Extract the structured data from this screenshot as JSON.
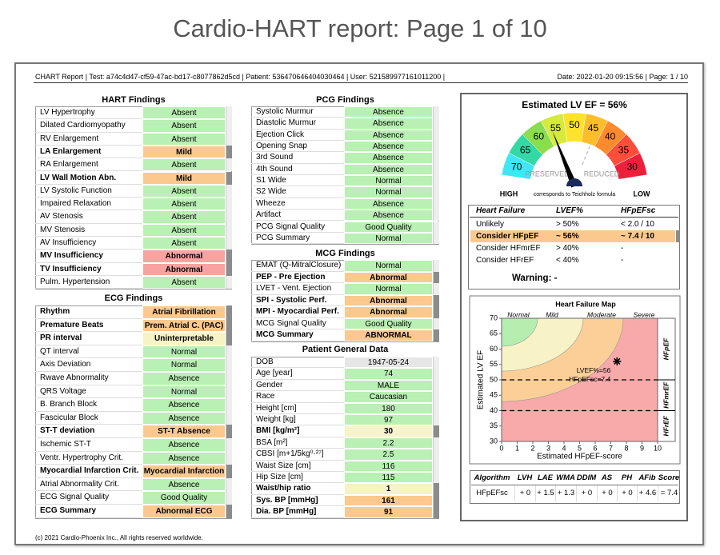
{
  "title": "Cardio-HART report: Page 1 of 10",
  "header": {
    "left": "CHART Report  |  Test: a74c4d47-cf59-47ac-bd17-c8077862d5cd  |  Patient: 536470646404030464  |  User: 521589977161011200  |",
    "right": "Date: 2022-01-20 09:15:56  |  Page: 1 / 10"
  },
  "hart": {
    "title": "HART Findings",
    "rows": [
      {
        "label": "LV Hypertrophy",
        "value": "Absent",
        "color": "#b9f0b3"
      },
      {
        "label": "Dilated Cardiomyopathy",
        "value": "Absent",
        "color": "#b9f0b3"
      },
      {
        "label": "RV Enlargement",
        "value": "Absent",
        "color": "#b9f0b3"
      },
      {
        "label": "LA Enlargement",
        "value": "Mild",
        "color": "#fbc98e",
        "bold": true
      },
      {
        "label": "RA Enlargement",
        "value": "Absent",
        "color": "#b9f0b3"
      },
      {
        "label": "LV Wall Motion Abn.",
        "value": "Mild",
        "color": "#fbc98e",
        "bold": true
      },
      {
        "label": "LV Systolic Function",
        "value": "Absent",
        "color": "#b9f0b3"
      },
      {
        "label": "Impaired Relaxation",
        "value": "Absent",
        "color": "#b9f0b3"
      },
      {
        "label": "AV Stenosis",
        "value": "Absent",
        "color": "#b9f0b3"
      },
      {
        "label": "MV Stenosis",
        "value": "Absent",
        "color": "#b9f0b3"
      },
      {
        "label": "AV Insufficiency",
        "value": "Absent",
        "color": "#b9f0b3"
      },
      {
        "label": "MV Insufficiency",
        "value": "Abnormal",
        "color": "#f8a3a1",
        "bold": true
      },
      {
        "label": "TV Insufficiency",
        "value": "Abnormal",
        "color": "#f8a3a1",
        "bold": true
      },
      {
        "label": "Pulm. Hypertension",
        "value": "Absent",
        "color": "#b9f0b3"
      }
    ]
  },
  "ecg": {
    "title": "ECG Findings",
    "rows": [
      {
        "label": "Rhythm",
        "value": "Atrial Fibrillation",
        "color": "#fbc98e",
        "bold": true
      },
      {
        "label": "Premature Beats",
        "value": "Prem. Atrial C. (PAC)",
        "color": "#fbc98e",
        "bold": true
      },
      {
        "label": "PR interval",
        "value": "Uninterpretable",
        "color": "#f6f3c5",
        "bold": true
      },
      {
        "label": "QT interval",
        "value": "Normal",
        "color": "#b9f0b3"
      },
      {
        "label": "Axis Deviation",
        "value": "Normal",
        "color": "#b9f0b3"
      },
      {
        "label": "Rwave Abnormality",
        "value": "Absence",
        "color": "#b9f0b3"
      },
      {
        "label": "QRS Voltage",
        "value": "Normal",
        "color": "#b9f0b3"
      },
      {
        "label": "B. Branch Block",
        "value": "Absence",
        "color": "#b9f0b3"
      },
      {
        "label": "Fascicular Block",
        "value": "Absence",
        "color": "#b9f0b3"
      },
      {
        "label": "ST-T deviation",
        "value": "ST-T Absence",
        "color": "#fbc98e",
        "bold": true
      },
      {
        "label": "Ischemic ST-T",
        "value": "Absence",
        "color": "#b9f0b3"
      },
      {
        "label": "Ventr. Hypertrophy Crit.",
        "value": "Absence",
        "color": "#b9f0b3"
      },
      {
        "label": "Myocardial Infarction Crit.",
        "value": "Myocardial Infarction",
        "color": "#fbc98e",
        "bold": true
      },
      {
        "label": "Atrial Abnormality Crit.",
        "value": "Absence",
        "color": "#b9f0b3"
      },
      {
        "label": "ECG Signal Quality",
        "value": "Good Quality",
        "color": "#b9f0b3"
      },
      {
        "label": "ECG Summary",
        "value": "Abnormal ECG",
        "color": "#fbc98e",
        "bold": true
      }
    ]
  },
  "pcg": {
    "title": "PCG Findings",
    "rows": [
      {
        "label": "Systolic Murmur",
        "value": "Absence",
        "color": "#b9f0b3"
      },
      {
        "label": "Diastolic Murmur",
        "value": "Absence",
        "color": "#b9f0b3"
      },
      {
        "label": "Ejection Click",
        "value": "Absence",
        "color": "#b9f0b3"
      },
      {
        "label": "Opening Snap",
        "value": "Absence",
        "color": "#b9f0b3"
      },
      {
        "label": "3rd Sound",
        "value": "Absence",
        "color": "#b9f0b3"
      },
      {
        "label": "4th Sound",
        "value": "Absence",
        "color": "#b9f0b3"
      },
      {
        "label": "S1 Wide",
        "value": "Normal",
        "color": "#b9f0b3"
      },
      {
        "label": "S2 Wide",
        "value": "Normal",
        "color": "#b9f0b3"
      },
      {
        "label": "Wheeze",
        "value": "Absence",
        "color": "#b9f0b3"
      },
      {
        "label": "Artifact",
        "value": "Absence",
        "color": "#b9f0b3"
      },
      {
        "label": "PCG Signal Quality",
        "value": "Good Quality",
        "color": "#b9f0b3"
      },
      {
        "label": "PCG Summary",
        "value": "Normal",
        "color": "#b9f0b3"
      }
    ]
  },
  "mcg": {
    "title": "MCG Findings",
    "rows": [
      {
        "label": "EMAT (Q-MitralClosure)",
        "value": "Normal",
        "color": "#b9f0b3"
      },
      {
        "label": "PEP - Pre Ejection",
        "value": "Abnormal",
        "color": "#fbc98e",
        "bold": true
      },
      {
        "label": "LVET - Vent. Ejection",
        "value": "Normal",
        "color": "#b9f0b3"
      },
      {
        "label": "SPI - Systolic Perf.",
        "value": "Abnormal",
        "color": "#fbc98e",
        "bold": true
      },
      {
        "label": "MPI - Myocardial Perf.",
        "value": "Abnormal",
        "color": "#fbc98e",
        "bold": true
      },
      {
        "label": "MCG Signal Quality",
        "value": "Good Quality",
        "color": "#b9f0b3"
      },
      {
        "label": "MCG Summary",
        "value": "ABNORMAL",
        "color": "#fbc98e",
        "bold": true
      }
    ]
  },
  "patient": {
    "title": "Patient General Data",
    "rows": [
      {
        "label": "DOB",
        "value": "1947-05-24",
        "color": "#e6e6e6"
      },
      {
        "label": "Age [year]",
        "value": "74",
        "color": "#b9f0b3"
      },
      {
        "label": "Gender",
        "value": "MALE",
        "color": "#b9f0b3"
      },
      {
        "label": "Race",
        "value": "Caucasian",
        "color": "#b9f0b3"
      },
      {
        "label": "Height [cm]",
        "value": "180",
        "color": "#b9f0b3"
      },
      {
        "label": "Weight [kg]",
        "value": "97",
        "color": "#b9f0b3"
      },
      {
        "label": "BMI [kg/m²]",
        "value": "30",
        "color": "#f6f3c5",
        "bold": true
      },
      {
        "label": "BSA [m²]",
        "value": "2.2",
        "color": "#b9f0b3"
      },
      {
        "label": "CBSI [m+1/5kg⁰·²⁷]",
        "value": "2.5",
        "color": "#b9f0b3"
      },
      {
        "label": "Waist Size [cm]",
        "value": "116",
        "color": "#b9f0b3"
      },
      {
        "label": "Hip Size [cm]",
        "value": "115",
        "color": "#b9f0b3"
      },
      {
        "label": "Waist/hip ratio",
        "value": "1",
        "color": "#f6f3c5",
        "bold": true
      },
      {
        "label": "Sys. BP [mmHg]",
        "value": "161",
        "color": "#fbc98e",
        "bold": true
      },
      {
        "label": "Dia. BP [mmHg]",
        "value": "91",
        "color": "#fbc98e",
        "bold": true
      }
    ]
  },
  "heart_failure": {
    "header": [
      "Heart Failure",
      "LVEF%",
      "HFpEFsc"
    ],
    "rows": [
      {
        "cells": [
          "Unlikely",
          "> 50%",
          "< 2.0 / 10"
        ]
      },
      {
        "cells": [
          "Consider HFpEF",
          "~ 56%",
          "~ 7.4 / 10"
        ],
        "color": "#fbc98e",
        "bold": true
      },
      {
        "cells": [
          "Consider HFmrEF",
          "> 40%",
          "-"
        ]
      },
      {
        "cells": [
          "Consider HFrEF",
          "< 40%",
          "-"
        ]
      }
    ],
    "warning": "Warning: -"
  },
  "algorithm": {
    "header": [
      "Algorithm",
      "LVH",
      "LAE",
      "WMA",
      "DDIM",
      "AS",
      "PH",
      "AFib",
      "Score"
    ],
    "row": [
      "HFpEFsc",
      "+ 0",
      "+ 1.5",
      "+ 1.3",
      "+ 0",
      "+ 0",
      "+ 0",
      "+ 4.6",
      "= 7.4"
    ]
  },
  "footer": "(c) 2021 Cardio-Phoenix Inc., All rights reserved worldwide.",
  "chart_data": [
    {
      "type": "gauge",
      "title": "Estimated LV EF = 56%",
      "value": 56,
      "lim": [
        75,
        25
      ],
      "ticks": [
        70,
        65,
        60,
        55,
        50,
        45,
        40,
        35,
        30
      ],
      "colors": [
        "#3ee6f6",
        "#33d9a5",
        "#8ade4c",
        "#d5ea3c",
        "#ffe22c",
        "#ffbd2c",
        "#ff8a2d",
        "#ff4d3b",
        "#ee1f3b"
      ],
      "left_label": "PRESERVED",
      "right_label": "REDUCED",
      "high_label": "HIGH",
      "low_label": "LOW",
      "note": "corresponds to Teichholz formula"
    },
    {
      "type": "scatter",
      "title": "Heart Failure Map",
      "x_label": "Estimated HFpEF-score",
      "y_label": "Estimated LV EF",
      "xlim": [
        0,
        10
      ],
      "ylim": [
        30,
        70
      ],
      "xticks": [
        0,
        1,
        2,
        3,
        4,
        5,
        6,
        7,
        8,
        9,
        10
      ],
      "yticks": [
        30,
        35,
        40,
        45,
        50,
        55,
        60,
        65,
        70
      ],
      "series": [
        {
          "x": [
            7.4
          ],
          "values": [
            56
          ],
          "color": "#000000"
        }
      ],
      "annotations": [
        "LVEF%=56",
        "HFpEFsc=7.4"
      ],
      "regions": [
        "Normal",
        "Mild",
        "Moderate",
        "Severe"
      ],
      "region_colors": [
        "#b6eeb0",
        "#f7f3c6",
        "#fbcf97",
        "#f8a9a9"
      ],
      "zones": [
        "HFpEF",
        "HFmrEF",
        "HFrEF"
      ],
      "hlines": [
        50,
        40
      ]
    }
  ]
}
